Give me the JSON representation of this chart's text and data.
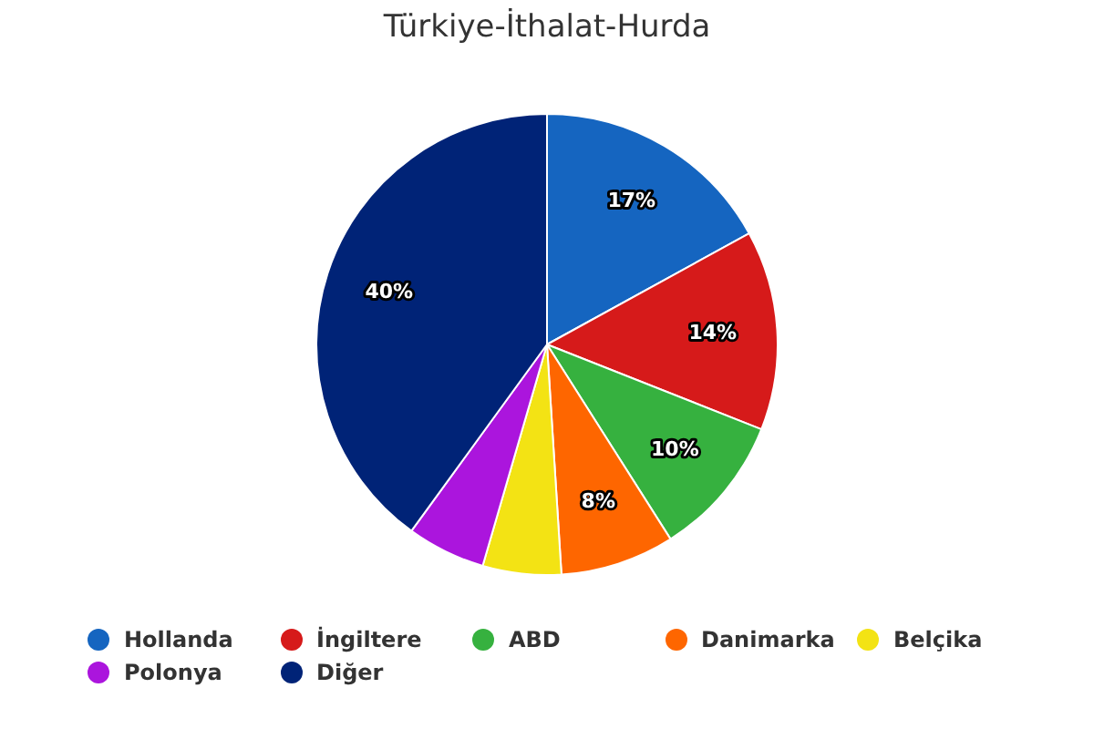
{
  "chart_data": {
    "type": "pie",
    "title": "Türkiye-İthalat-Hurda",
    "categories": [
      "Hollanda",
      "İngiltere",
      "ABD",
      "Danimarka",
      "Belçika",
      "Polonya",
      "Diğer"
    ],
    "values": [
      17,
      14,
      10,
      8,
      5.5,
      5.5,
      40
    ],
    "colors": [
      "#1565c0",
      "#d61a1a",
      "#36b13f",
      "#fe6600",
      "#f3e314",
      "#ab15dd",
      "#002377"
    ],
    "value_labels": [
      "17%",
      "14%",
      "10%",
      "8%",
      null,
      null,
      "40%"
    ],
    "legend": "bottom"
  }
}
